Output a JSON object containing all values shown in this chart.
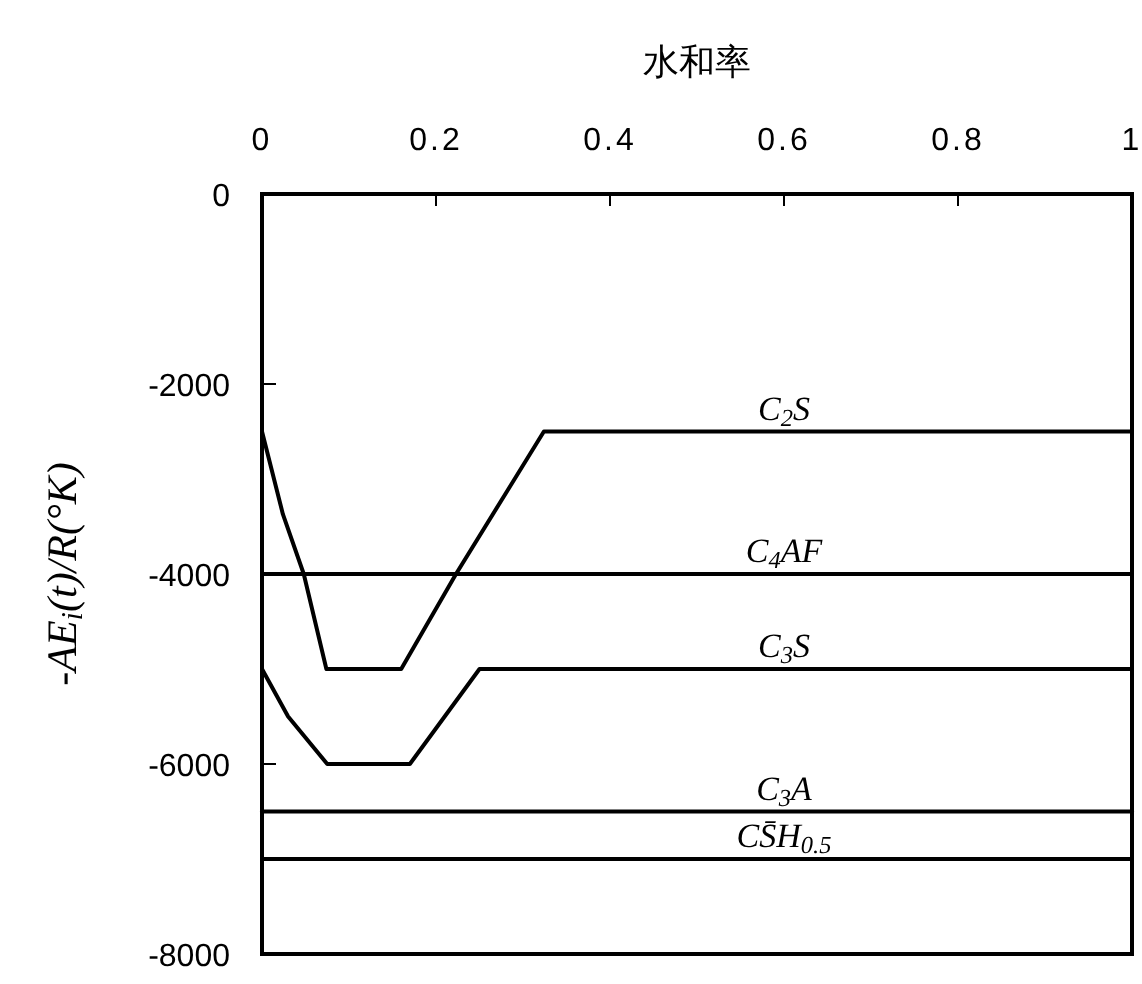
{
  "chart_data": {
    "type": "line",
    "xlabel": "水和率",
    "ylabel": "-AE$_{i}$(t)/R(°K)",
    "xlim": [
      0,
      1
    ],
    "xticks": [
      0,
      0.2,
      0.4,
      0.6,
      0.8,
      1
    ],
    "ylim": [
      -8000,
      0
    ],
    "yticks": [
      0,
      -2000,
      -4000,
      -6000,
      -8000
    ],
    "grid": false,
    "legend": false,
    "marker": "none",
    "line_style": "solid",
    "series": [
      {
        "name": "C$_{2}$S",
        "color": "#000000",
        "x": [
          0,
          0.024,
          0.048,
          0.074,
          0.16,
          0.223,
          0.324,
          1
        ],
        "values": [
          -2500,
          -3370,
          -4000,
          -5000,
          -5000,
          -4000,
          -2500,
          -2500
        ]
      },
      {
        "name": "C$_{4}$AF",
        "color": "#000000",
        "x": [
          0,
          1
        ],
        "values": [
          -4000,
          -4000
        ]
      },
      {
        "name": "C$_{3}$S",
        "color": "#000000",
        "x": [
          0,
          0.03,
          0.075,
          0.17,
          0.25,
          1
        ],
        "values": [
          -5000,
          -5500,
          -6000,
          -6000,
          -5000,
          -5000
        ]
      },
      {
        "name": "C$_{3}$A",
        "color": "#000000",
        "x": [
          0,
          1
        ],
        "values": [
          -6500,
          -6500
        ]
      },
      {
        "name": "CS̄H$_{0.5}$",
        "color": "#000000",
        "x": [
          0,
          1
        ],
        "values": [
          -7000,
          -7000
        ]
      }
    ]
  }
}
